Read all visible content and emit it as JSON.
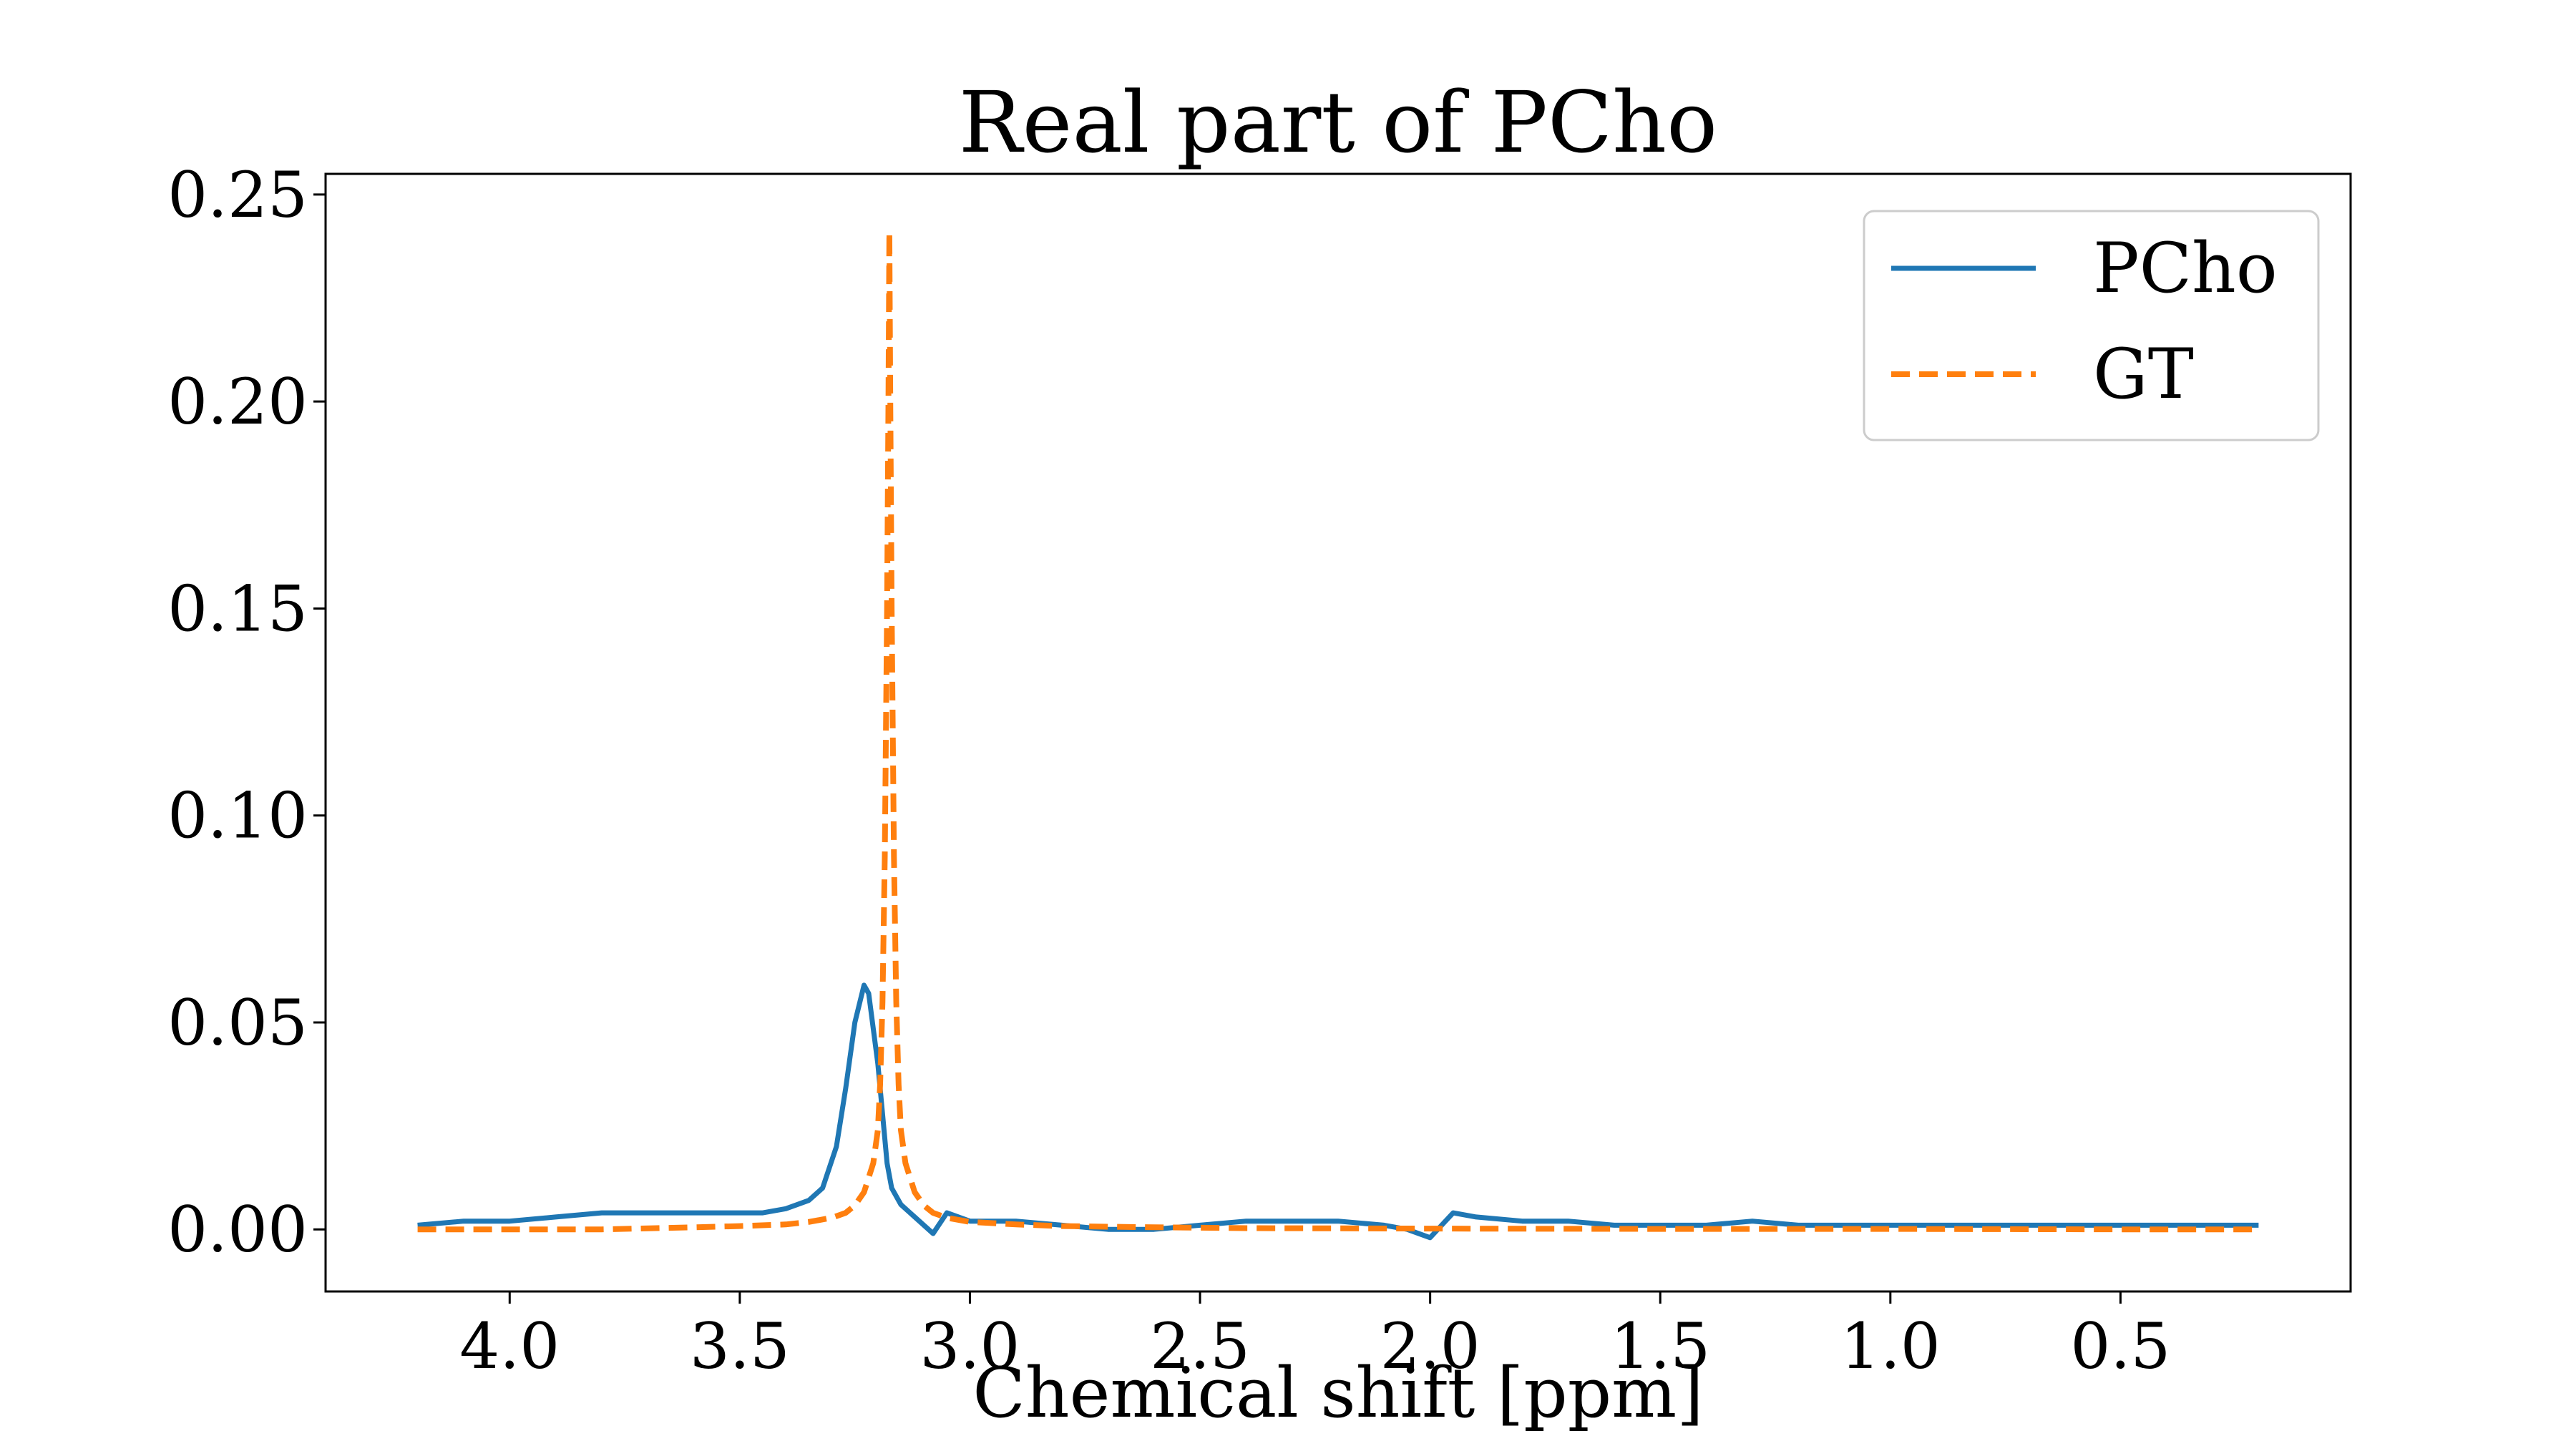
{
  "chart_data": {
    "type": "line",
    "title": "Real part of PCho",
    "xlabel": "Chemical shift [ppm]",
    "ylabel": "",
    "x_reversed": true,
    "xlim": [
      4.4,
      0.0
    ],
    "ylim": [
      -0.015,
      0.255
    ],
    "x_ticks": [
      4.0,
      3.5,
      3.0,
      2.5,
      2.0,
      1.5,
      1.0,
      0.5
    ],
    "x_tick_labels": [
      "4.0",
      "3.5",
      "3.0",
      "2.5",
      "2.0",
      "1.5",
      "1.0",
      "0.5"
    ],
    "y_ticks": [
      0.0,
      0.05,
      0.1,
      0.15,
      0.2,
      0.25
    ],
    "y_tick_labels": [
      "0.00",
      "0.05",
      "0.10",
      "0.15",
      "0.20",
      "0.25"
    ],
    "grid": false,
    "legend_position": "top-right",
    "series": [
      {
        "name": "PCho",
        "color": "#1f77b4",
        "style": "solid",
        "points": [
          [
            4.2,
            0.001
          ],
          [
            4.1,
            0.002
          ],
          [
            4.0,
            0.002
          ],
          [
            3.9,
            0.003
          ],
          [
            3.8,
            0.004
          ],
          [
            3.7,
            0.004
          ],
          [
            3.6,
            0.004
          ],
          [
            3.5,
            0.004
          ],
          [
            3.45,
            0.004
          ],
          [
            3.4,
            0.005
          ],
          [
            3.35,
            0.007
          ],
          [
            3.32,
            0.01
          ],
          [
            3.29,
            0.02
          ],
          [
            3.27,
            0.034
          ],
          [
            3.25,
            0.05
          ],
          [
            3.23,
            0.059
          ],
          [
            3.22,
            0.057
          ],
          [
            3.2,
            0.04
          ],
          [
            3.19,
            0.028
          ],
          [
            3.18,
            0.016
          ],
          [
            3.17,
            0.01
          ],
          [
            3.15,
            0.006
          ],
          [
            3.12,
            0.003
          ],
          [
            3.08,
            -0.001
          ],
          [
            3.05,
            0.004
          ],
          [
            3.0,
            0.002
          ],
          [
            2.9,
            0.002
          ],
          [
            2.8,
            0.001
          ],
          [
            2.7,
            0.0
          ],
          [
            2.6,
            0.0
          ],
          [
            2.5,
            0.001
          ],
          [
            2.4,
            0.002
          ],
          [
            2.3,
            0.002
          ],
          [
            2.2,
            0.002
          ],
          [
            2.1,
            0.001
          ],
          [
            2.05,
            0.0
          ],
          [
            2.0,
            -0.002
          ],
          [
            1.95,
            0.004
          ],
          [
            1.9,
            0.003
          ],
          [
            1.8,
            0.002
          ],
          [
            1.7,
            0.002
          ],
          [
            1.6,
            0.001
          ],
          [
            1.5,
            0.001
          ],
          [
            1.4,
            0.001
          ],
          [
            1.3,
            0.002
          ],
          [
            1.2,
            0.001
          ],
          [
            1.1,
            0.001
          ],
          [
            1.0,
            0.001
          ],
          [
            0.9,
            0.001
          ],
          [
            0.8,
            0.001
          ],
          [
            0.7,
            0.001
          ],
          [
            0.6,
            0.001
          ],
          [
            0.5,
            0.001
          ],
          [
            0.4,
            0.001
          ],
          [
            0.3,
            0.001
          ],
          [
            0.2,
            0.001
          ]
        ]
      },
      {
        "name": "GT",
        "color": "#ff7f0e",
        "style": "dashed",
        "points": [
          [
            4.2,
            0.0
          ],
          [
            4.0,
            0.0
          ],
          [
            3.8,
            0.0
          ],
          [
            3.6,
            0.0005
          ],
          [
            3.5,
            0.0008
          ],
          [
            3.4,
            0.0012
          ],
          [
            3.35,
            0.0018
          ],
          [
            3.3,
            0.0028
          ],
          [
            3.27,
            0.004
          ],
          [
            3.25,
            0.0058
          ],
          [
            3.23,
            0.009
          ],
          [
            3.21,
            0.016
          ],
          [
            3.2,
            0.024
          ],
          [
            3.195,
            0.035
          ],
          [
            3.19,
            0.055
          ],
          [
            3.185,
            0.09
          ],
          [
            3.18,
            0.15
          ],
          [
            3.177,
            0.2
          ],
          [
            3.175,
            0.241
          ],
          [
            3.173,
            0.2
          ],
          [
            3.17,
            0.15
          ],
          [
            3.165,
            0.09
          ],
          [
            3.16,
            0.055
          ],
          [
            3.155,
            0.035
          ],
          [
            3.15,
            0.024
          ],
          [
            3.14,
            0.016
          ],
          [
            3.12,
            0.009
          ],
          [
            3.1,
            0.0058
          ],
          [
            3.08,
            0.004
          ],
          [
            3.05,
            0.0028
          ],
          [
            3.0,
            0.0018
          ],
          [
            2.9,
            0.0012
          ],
          [
            2.8,
            0.0008
          ],
          [
            2.6,
            0.0005
          ],
          [
            2.4,
            0.0003
          ],
          [
            2.0,
            0.0002
          ],
          [
            1.5,
            0.0001
          ],
          [
            1.0,
            0.0001
          ],
          [
            0.5,
            0.0
          ],
          [
            0.2,
            0.0
          ]
        ]
      }
    ]
  }
}
